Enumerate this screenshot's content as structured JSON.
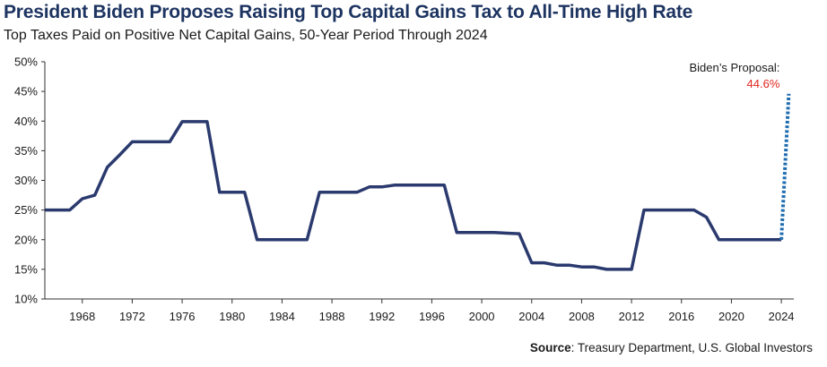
{
  "title": "President Biden Proposes Raising Top Capital Gains Tax to All-Time High Rate",
  "subtitle": "Top Taxes Paid on Positive Net Capital Gains, 50-Year Period Through 2024",
  "source_label": "Source",
  "source_text": ": Treasury Department, U.S. Global Investors",
  "chart_data": {
    "type": "line",
    "title": "President Biden Proposes Raising Top Capital Gains Tax to All-Time High Rate",
    "subtitle": "Top Taxes Paid on Positive Net Capital Gains, 50-Year Period Through 2024",
    "xlabel": "",
    "ylabel": "",
    "xlim": [
      1965,
      2025
    ],
    "ylim": [
      10,
      50
    ],
    "y_ticks": [
      10,
      15,
      20,
      25,
      30,
      35,
      40,
      45,
      50
    ],
    "y_tick_labels": [
      "10%",
      "15%",
      "20%",
      "25%",
      "30%",
      "35%",
      "40%",
      "45%",
      "50%"
    ],
    "x_ticks": [
      1968,
      1972,
      1976,
      1980,
      1984,
      1988,
      1992,
      1996,
      2000,
      2004,
      2008,
      2012,
      2016,
      2020,
      2024
    ],
    "x_tick_labels": [
      "1968",
      "1972",
      "1976",
      "1980",
      "1984",
      "1988",
      "1992",
      "1996",
      "2000",
      "2004",
      "2008",
      "2012",
      "2016",
      "2020",
      "2024"
    ],
    "grid": false,
    "series": [
      {
        "color": "#2b3a6e",
        "style": "solid",
        "x": [
          1965,
          1967,
          1968,
          1969,
          1970,
          1971,
          1972,
          1973,
          1974,
          1975,
          1976,
          1977,
          1978,
          1979,
          1980,
          1981,
          1982,
          1983,
          1984,
          1985,
          1986,
          1987,
          1988,
          1989,
          1990,
          1991,
          1992,
          1993,
          1994,
          1995,
          1996,
          1997,
          1998,
          1999,
          2000,
          2001,
          2002,
          2003,
          2004,
          2005,
          2006,
          2007,
          2008,
          2009,
          2010,
          2011,
          2012,
          2013,
          2014,
          2015,
          2016,
          2017,
          2018,
          2019,
          2020,
          2021,
          2022,
          2023,
          2024
        ],
        "y": [
          25,
          25,
          26.9,
          27.5,
          32.2,
          34.3,
          36.5,
          36.5,
          36.5,
          36.5,
          39.9,
          39.9,
          39.9,
          28,
          28,
          28,
          20,
          20,
          20,
          20,
          20,
          28,
          28,
          28,
          28,
          28.9,
          28.9,
          29.2,
          29.2,
          29.2,
          29.2,
          29.2,
          21.2,
          21.2,
          21.2,
          21.2,
          21.1,
          21,
          16.1,
          16.1,
          15.7,
          15.7,
          15.4,
          15.4,
          15,
          15,
          15,
          25,
          25,
          25,
          25,
          25,
          23.8,
          20,
          20,
          20,
          20,
          20,
          20
        ]
      },
      {
        "color": "#1f6db0",
        "style": "dotted",
        "x": [
          2024,
          2024.6
        ],
        "y": [
          20,
          44.6
        ]
      }
    ],
    "annotations": [
      {
        "text": "Biden’s Proposal:",
        "x": 2024.6,
        "y": 44.6
      },
      {
        "text": "44.6%",
        "x": 2024.6,
        "y": 44.6,
        "color": "#e0261e"
      }
    ]
  }
}
